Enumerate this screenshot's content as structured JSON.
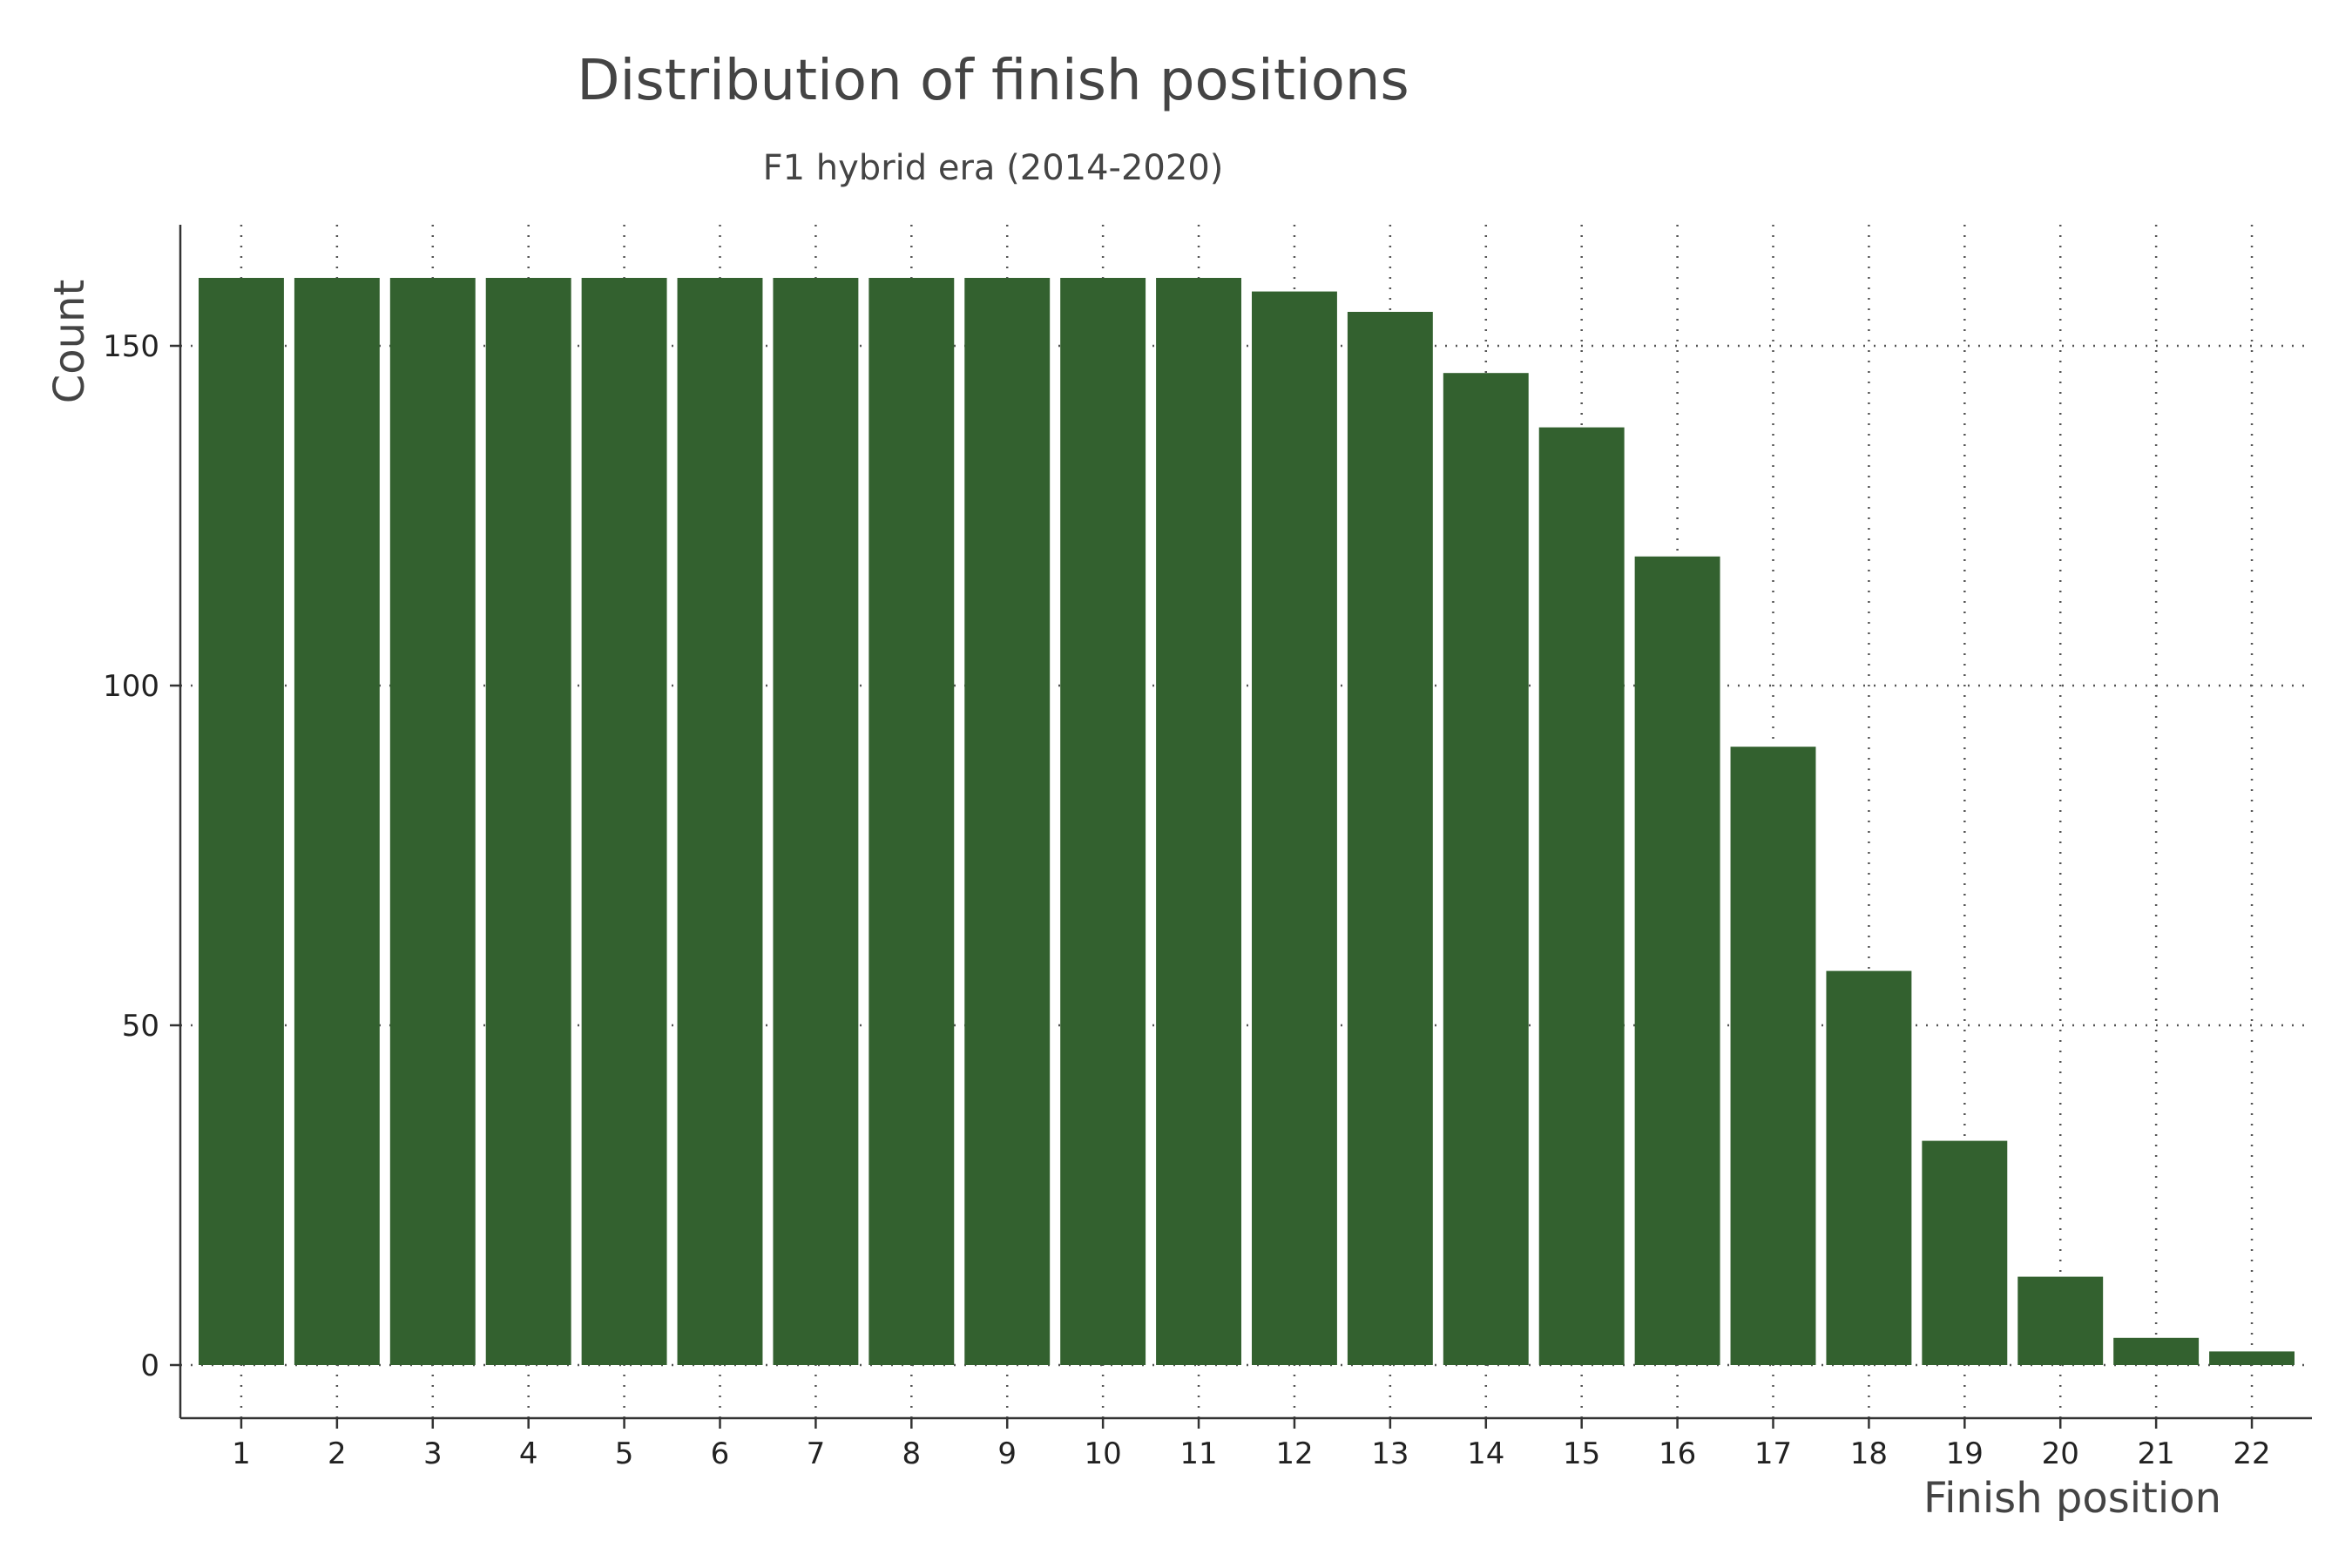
{
  "chart_data": {
    "type": "bar",
    "title": "Distribution of finish positions",
    "subtitle": "F1 hybrid era (2014-2020)",
    "xlabel": "Finish position",
    "ylabel": "Count",
    "categories": [
      "1",
      "2",
      "3",
      "4",
      "5",
      "6",
      "7",
      "8",
      "9",
      "10",
      "11",
      "12",
      "13",
      "14",
      "15",
      "16",
      "17",
      "18",
      "19",
      "20",
      "21",
      "22"
    ],
    "values": [
      160,
      160,
      160,
      160,
      160,
      160,
      160,
      160,
      160,
      160,
      160,
      158,
      155,
      146,
      138,
      119,
      91,
      58,
      33,
      13,
      4,
      2
    ],
    "y_ticks": [
      "0",
      "50",
      "100",
      "150"
    ],
    "ylim": [
      -8,
      168
    ],
    "grid": true,
    "bar_color": "#33612f"
  }
}
